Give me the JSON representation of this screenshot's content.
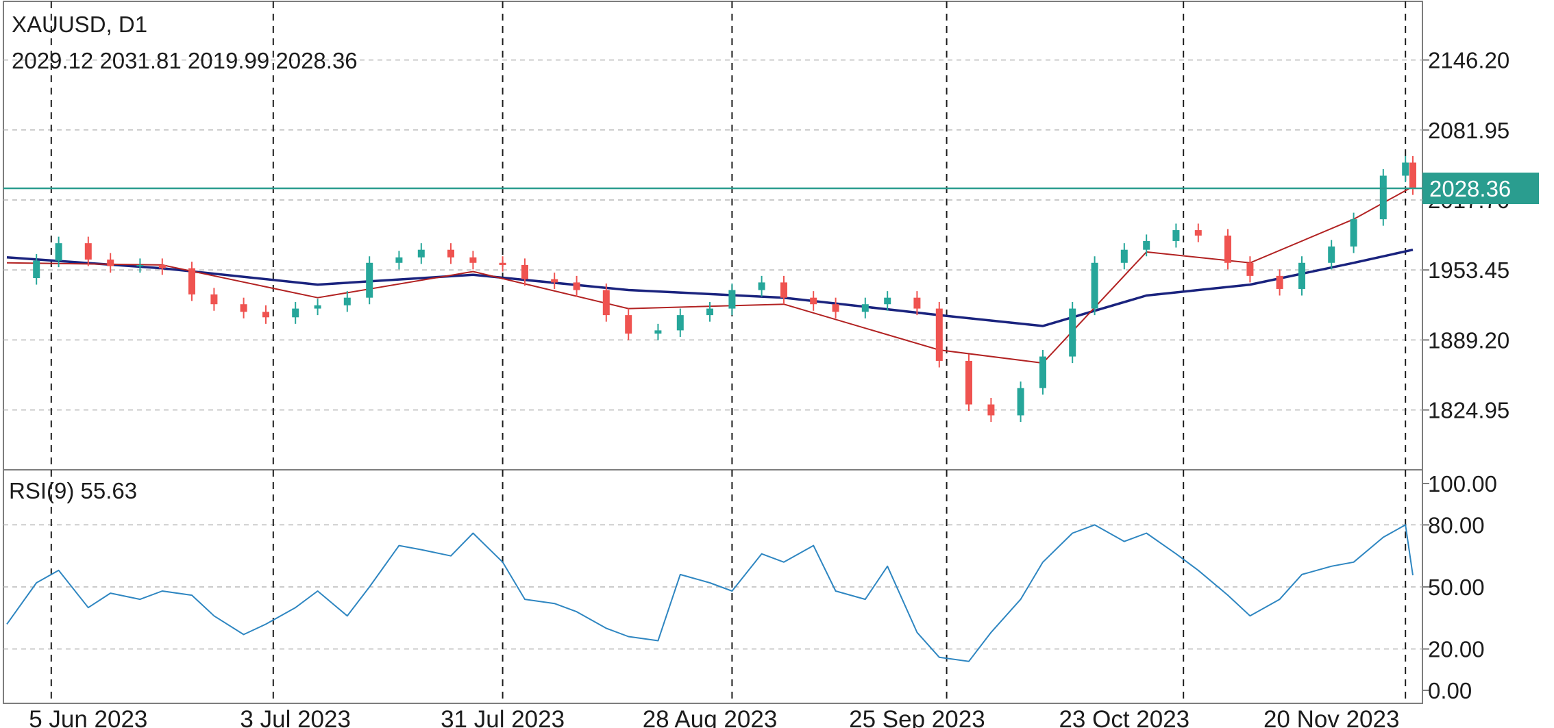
{
  "header": {
    "symbol_line": "XAUUSD, D1",
    "ohlc_line": "2029.12 2031.81 2019.99 2028.36"
  },
  "rsi_panel": {
    "label": "RSI(9) 55.63"
  },
  "last_price": {
    "label": "2028.36",
    "value": 2028.36
  },
  "colors": {
    "bull": "#26a69a",
    "bear": "#ef5350",
    "ma_fast": "#b22222",
    "ma_slow": "#1a237e",
    "rsi_line": "#2e86c1",
    "last_price_line": "#2a9d8f"
  },
  "chart_data": [
    {
      "type": "candlestick",
      "symbol": "XAUUSD",
      "timeframe": "D1",
      "x_start": "2023-05-25",
      "x_end": "2023-12-01",
      "ylim": [
        1770,
        2200
      ],
      "y_ticks": [
        "2146.20",
        "2081.95",
        "2017.70",
        "1953.45",
        "1889.20",
        "1824.95"
      ],
      "x_ticks": [
        "5 Jun 2023",
        "3 Jul 2023",
        "31 Jul 2023",
        "28 Aug 2023",
        "25 Sep 2023",
        "23 Oct 2023",
        "20 Nov 2023"
      ],
      "x_tick_dates": [
        "2023-06-05",
        "2023-07-03",
        "2023-07-31",
        "2023-08-28",
        "2023-09-25",
        "2023-10-23",
        "2023-11-20"
      ],
      "vertical_markers": [
        "2023-05-31",
        "2023-06-30",
        "2023-07-31",
        "2023-08-31",
        "2023-09-29",
        "2023-10-31",
        "2023-11-30"
      ],
      "series": [
        {
          "name": "Close",
          "dates": [
            "2023-05-25",
            "2023-05-29",
            "2023-06-01",
            "2023-06-05",
            "2023-06-08",
            "2023-06-12",
            "2023-06-15",
            "2023-06-19",
            "2023-06-22",
            "2023-06-26",
            "2023-06-29",
            "2023-07-03",
            "2023-07-06",
            "2023-07-10",
            "2023-07-13",
            "2023-07-17",
            "2023-07-20",
            "2023-07-24",
            "2023-07-27",
            "2023-07-31",
            "2023-08-03",
            "2023-08-07",
            "2023-08-10",
            "2023-08-14",
            "2023-08-17",
            "2023-08-21",
            "2023-08-24",
            "2023-08-28",
            "2023-08-31",
            "2023-09-04",
            "2023-09-07",
            "2023-09-11",
            "2023-09-14",
            "2023-09-18",
            "2023-09-21",
            "2023-09-25",
            "2023-09-28",
            "2023-10-02",
            "2023-10-05",
            "2023-10-09",
            "2023-10-12",
            "2023-10-16",
            "2023-10-19",
            "2023-10-23",
            "2023-10-26",
            "2023-10-30",
            "2023-11-02",
            "2023-11-06",
            "2023-11-09",
            "2023-11-13",
            "2023-11-16",
            "2023-11-20",
            "2023-11-23",
            "2023-11-27",
            "2023-11-30",
            "2023-12-01"
          ],
          "values": [
            1946,
            1962,
            1978,
            1963,
            1957,
            1958,
            1955,
            1931,
            1922,
            1915,
            1910,
            1918,
            1921,
            1928,
            1960,
            1965,
            1972,
            1965,
            1960,
            1958,
            1945,
            1942,
            1935,
            1912,
            1895,
            1898,
            1912,
            1918,
            1935,
            1942,
            1928,
            1922,
            1915,
            1922,
            1928,
            1918,
            1870,
            1830,
            1820,
            1845,
            1874,
            1918,
            1960,
            1972,
            1980,
            1990,
            1985,
            1960,
            1948,
            1936,
            1960,
            1975,
            2000,
            2040,
            2052,
            2028.36
          ]
        },
        {
          "name": "",
          "dates": [
            "2023-05-25",
            "2023-06-15",
            "2023-07-06",
            "2023-07-27",
            "2023-08-17",
            "2023-09-07",
            "2023-09-28",
            "2023-10-12",
            "2023-10-26",
            "2023-11-09",
            "2023-11-23",
            "2023-12-01"
          ],
          "values": [
            1960,
            1958,
            1928,
            1952,
            1918,
            1922,
            1880,
            1868,
            1970,
            1960,
            2000,
            2030
          ]
        },
        {
          "name": "",
          "dates": [
            "2023-05-25",
            "2023-06-15",
            "2023-07-06",
            "2023-07-27",
            "2023-08-17",
            "2023-09-07",
            "2023-09-28",
            "2023-10-12",
            "2023-10-26",
            "2023-11-09",
            "2023-11-23",
            "2023-12-01"
          ],
          "values": [
            1965,
            1955,
            1940,
            1949,
            1935,
            1928,
            1912,
            1902,
            1930,
            1940,
            1960,
            1972
          ]
        }
      ]
    },
    {
      "type": "line",
      "name": "RSI(9)",
      "last_value": 55.63,
      "ylim": [
        0,
        100
      ],
      "y_ticks": [
        "100.00",
        "80.00",
        "50.00",
        "20.00",
        "0.00"
      ],
      "levels": [
        80,
        50,
        20
      ],
      "dates": [
        "2023-05-25",
        "2023-05-29",
        "2023-06-01",
        "2023-06-05",
        "2023-06-08",
        "2023-06-12",
        "2023-06-15",
        "2023-06-19",
        "2023-06-22",
        "2023-06-26",
        "2023-06-29",
        "2023-07-03",
        "2023-07-06",
        "2023-07-10",
        "2023-07-13",
        "2023-07-17",
        "2023-07-20",
        "2023-07-24",
        "2023-07-27",
        "2023-07-31",
        "2023-08-03",
        "2023-08-07",
        "2023-08-10",
        "2023-08-14",
        "2023-08-17",
        "2023-08-21",
        "2023-08-24",
        "2023-08-28",
        "2023-08-31",
        "2023-09-04",
        "2023-09-07",
        "2023-09-11",
        "2023-09-14",
        "2023-09-18",
        "2023-09-21",
        "2023-09-25",
        "2023-09-28",
        "2023-10-02",
        "2023-10-05",
        "2023-10-09",
        "2023-10-12",
        "2023-10-16",
        "2023-10-19",
        "2023-10-23",
        "2023-10-26",
        "2023-10-30",
        "2023-11-02",
        "2023-11-06",
        "2023-11-09",
        "2023-11-13",
        "2023-11-16",
        "2023-11-20",
        "2023-11-23",
        "2023-11-27",
        "2023-11-30",
        "2023-12-01"
      ],
      "values": [
        32,
        52,
        58,
        40,
        47,
        44,
        48,
        46,
        36,
        27,
        32,
        40,
        48,
        36,
        50,
        70,
        68,
        65,
        76,
        62,
        44,
        42,
        38,
        30,
        26,
        24,
        56,
        52,
        48,
        66,
        62,
        70,
        48,
        44,
        60,
        28,
        16,
        14,
        28,
        44,
        62,
        76,
        80,
        72,
        76,
        66,
        58,
        46,
        36,
        44,
        56,
        60,
        62,
        74,
        80,
        55.63
      ]
    }
  ]
}
